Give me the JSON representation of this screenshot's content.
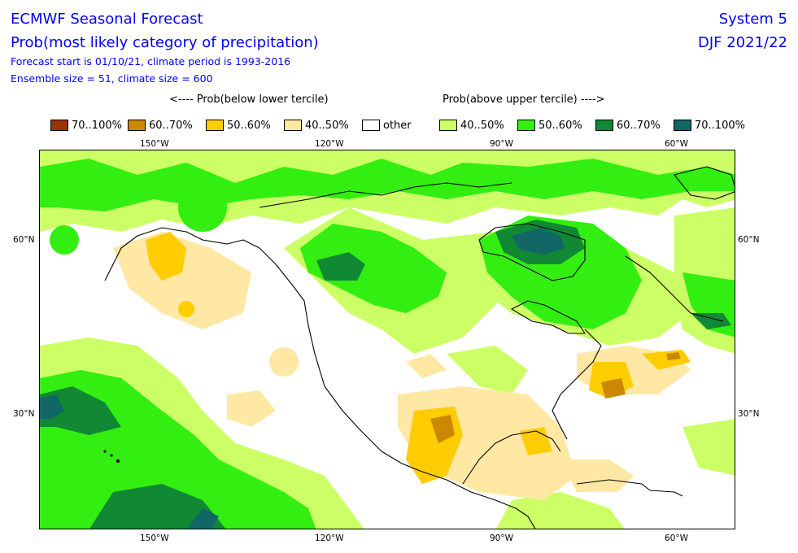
{
  "header": {
    "title": "ECMWF Seasonal Forecast",
    "subtitle": "Prob(most likely category of precipitation)",
    "forecast_info": "Forecast start is 01/10/21, climate period is 1993-2016",
    "ensemble_info": "Ensemble size = 51, climate size = 600",
    "system": "System 5",
    "period": "DJF 2021/22"
  },
  "legend": {
    "below_header": "<---- Prob(below lower tercile)",
    "above_header": "Prob(above upper tercile) ---->",
    "items": [
      {
        "label": "70..100%",
        "color": "#993300"
      },
      {
        "label": "60..70%",
        "color": "#cc8800"
      },
      {
        "label": "50..60%",
        "color": "#ffcc00"
      },
      {
        "label": "40..50%",
        "color": "#ffe8a3"
      },
      {
        "label": "other",
        "color": "#ffffff"
      },
      {
        "label": "40..50%",
        "color": "#ccff66"
      },
      {
        "label": "50..60%",
        "color": "#33ee11"
      },
      {
        "label": "60..70%",
        "color": "#118833"
      },
      {
        "label": "70..100%",
        "color": "#116666"
      }
    ]
  },
  "axes": {
    "lon_labels": [
      "150°W",
      "120°W",
      "90°W",
      "60°W"
    ],
    "lat_labels": [
      "60°N",
      "30°N"
    ]
  }
}
